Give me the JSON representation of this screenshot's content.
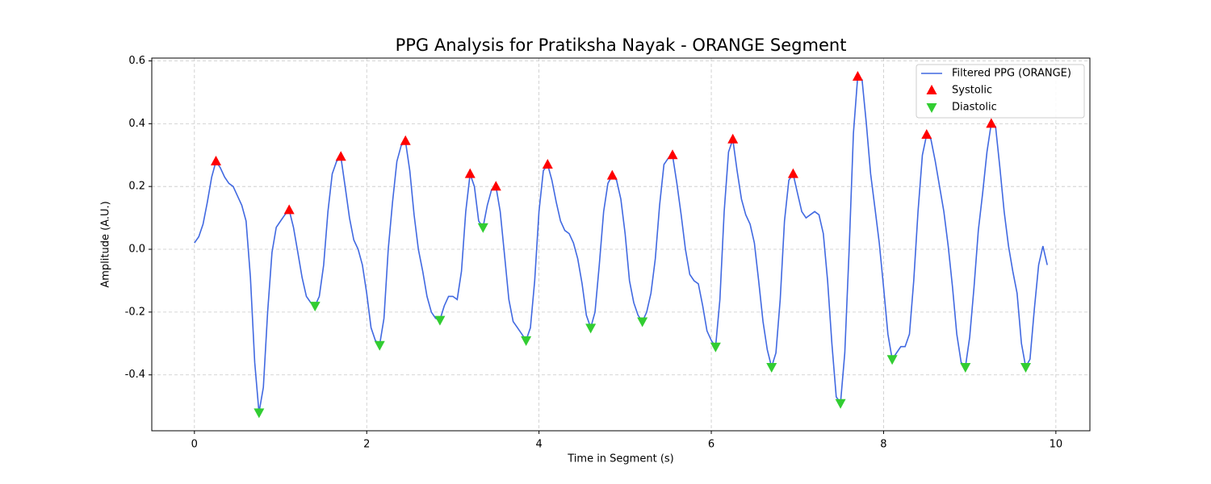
{
  "chart_data": {
    "type": "line",
    "title": "PPG Analysis for Pratiksha Nayak - ORANGE Segment",
    "xlabel": "Time in Segment (s)",
    "ylabel": "Amplitude (A.U.)",
    "xlim": [
      -0.495,
      10.395
    ],
    "ylim": [
      -0.578,
      0.609
    ],
    "xticks": [
      0,
      2,
      4,
      6,
      8,
      10
    ],
    "yticks": [
      -0.4,
      -0.2,
      {
        "value": 0,
        "label": "0.0"
      },
      0.2,
      0.4,
      0.6
    ],
    "grid": true,
    "legend": "upper right",
    "series": [
      {
        "name": "Filtered PPG (ORANGE)",
        "type": "line",
        "color": "#4169e1",
        "x": [
          0,
          0.05,
          0.1,
          0.15,
          0.2,
          0.25,
          0.3,
          0.35,
          0.4,
          0.45,
          0.5,
          0.55,
          0.6,
          0.65,
          0.7,
          0.75,
          0.8,
          0.85,
          0.9,
          0.95,
          1,
          1.05,
          1.1,
          1.15,
          1.2,
          1.25,
          1.3,
          1.35,
          1.4,
          1.45,
          1.5,
          1.55,
          1.6,
          1.65,
          1.7,
          1.75,
          1.8,
          1.85,
          1.9,
          1.95,
          2,
          2.05,
          2.1,
          2.15,
          2.2,
          2.25,
          2.3,
          2.35,
          2.4,
          2.45,
          2.5,
          2.55,
          2.6,
          2.65,
          2.7,
          2.75,
          2.8,
          2.85,
          2.9,
          2.95,
          3,
          3.05,
          3.1,
          3.15,
          3.2,
          3.25,
          3.3,
          3.35,
          3.4,
          3.45,
          3.5,
          3.55,
          3.6,
          3.65,
          3.7,
          3.75,
          3.8,
          3.85,
          3.9,
          3.95,
          4,
          4.05,
          4.1,
          4.15,
          4.2,
          4.25,
          4.3,
          4.35,
          4.4,
          4.45,
          4.5,
          4.55,
          4.6,
          4.65,
          4.7,
          4.75,
          4.8,
          4.85,
          4.9,
          4.95,
          5,
          5.05,
          5.1,
          5.15,
          5.2,
          5.25,
          5.3,
          5.35,
          5.4,
          5.45,
          5.5,
          5.55,
          5.6,
          5.65,
          5.7,
          5.75,
          5.8,
          5.85,
          5.9,
          5.95,
          6,
          6.05,
          6.1,
          6.15,
          6.2,
          6.25,
          6.3,
          6.35,
          6.4,
          6.45,
          6.5,
          6.55,
          6.6,
          6.65,
          6.7,
          6.75,
          6.8,
          6.85,
          6.9,
          6.95,
          7,
          7.05,
          7.1,
          7.15,
          7.2,
          7.25,
          7.3,
          7.35,
          7.4,
          7.45,
          7.5,
          7.55,
          7.6,
          7.65,
          7.7,
          7.75,
          7.8,
          7.85,
          7.9,
          7.95,
          8,
          8.05,
          8.1,
          8.15,
          8.2,
          8.25,
          8.3,
          8.35,
          8.4,
          8.45,
          8.5,
          8.55,
          8.6,
          8.65,
          8.7,
          8.75,
          8.8,
          8.85,
          8.9,
          8.95,
          9,
          9.05,
          9.1,
          9.15,
          9.2,
          9.25,
          9.3,
          9.35,
          9.4,
          9.45,
          9.5,
          9.55,
          9.6,
          9.65,
          9.7,
          9.75,
          9.8,
          9.85,
          9.9
        ],
        "values": [
          0.02,
          0.04,
          0.08,
          0.15,
          0.23,
          0.28,
          0.26,
          0.23,
          0.21,
          0.2,
          0.17,
          0.14,
          0.09,
          -0.09,
          -0.36,
          -0.52,
          -0.44,
          -0.2,
          -0.01,
          0.07,
          0.09,
          0.11,
          0.125,
          0.07,
          -0.01,
          -0.09,
          -0.15,
          -0.17,
          -0.18,
          -0.15,
          -0.05,
          0.12,
          0.24,
          0.28,
          0.295,
          0.2,
          0.1,
          0.03,
          0.0,
          -0.05,
          -0.14,
          -0.25,
          -0.29,
          -0.305,
          -0.22,
          0.0,
          0.15,
          0.28,
          0.33,
          0.345,
          0.25,
          0.11,
          0.0,
          -0.07,
          -0.15,
          -0.2,
          -0.22,
          -0.225,
          -0.18,
          -0.15,
          -0.15,
          -0.16,
          -0.07,
          0.12,
          0.24,
          0.2,
          0.09,
          0.07,
          0.14,
          0.19,
          0.2,
          0.12,
          -0.02,
          -0.16,
          -0.23,
          -0.25,
          -0.27,
          -0.29,
          -0.25,
          -0.1,
          0.12,
          0.25,
          0.27,
          0.22,
          0.15,
          0.09,
          0.06,
          0.05,
          0.02,
          -0.03,
          -0.11,
          -0.21,
          -0.25,
          -0.2,
          -0.05,
          0.12,
          0.21,
          0.235,
          0.22,
          0.16,
          0.05,
          -0.1,
          -0.17,
          -0.21,
          -0.23,
          -0.2,
          -0.14,
          -0.03,
          0.14,
          0.27,
          0.29,
          0.3,
          0.21,
          0.11,
          0.0,
          -0.08,
          -0.1,
          -0.11,
          -0.18,
          -0.26,
          -0.29,
          -0.31,
          -0.16,
          0.12,
          0.31,
          0.35,
          0.25,
          0.16,
          0.11,
          0.08,
          0.02,
          -0.1,
          -0.23,
          -0.32,
          -0.375,
          -0.33,
          -0.16,
          0.09,
          0.22,
          0.24,
          0.18,
          0.12,
          0.1,
          0.11,
          0.12,
          0.11,
          0.05,
          -0.1,
          -0.3,
          -0.47,
          -0.49,
          -0.33,
          0.0,
          0.37,
          0.55,
          0.54,
          0.4,
          0.24,
          0.13,
          0.02,
          -0.12,
          -0.27,
          -0.35,
          -0.33,
          -0.31,
          -0.31,
          -0.27,
          -0.1,
          0.12,
          0.3,
          0.365,
          0.35,
          0.28,
          0.2,
          0.12,
          0.01,
          -0.12,
          -0.27,
          -0.36,
          -0.375,
          -0.28,
          -0.12,
          0.06,
          0.18,
          0.31,
          0.4,
          0.39,
          0.26,
          0.12,
          0.01,
          -0.07,
          -0.14,
          -0.3,
          -0.375,
          -0.35,
          -0.19,
          -0.05,
          0.01,
          -0.05
        ]
      },
      {
        "name": "Systolic",
        "type": "scatter",
        "marker": "triangle-up",
        "color": "#ff0000",
        "x": [
          0.25,
          1.1,
          1.7,
          2.45,
          3.2,
          3.5,
          4.1,
          4.85,
          5.55,
          6.25,
          6.95,
          7.7,
          8.5,
          9.25
        ],
        "values": [
          0.28,
          0.125,
          0.295,
          0.345,
          0.24,
          0.2,
          0.27,
          0.235,
          0.3,
          0.35,
          0.24,
          0.55,
          0.365,
          0.4
        ]
      },
      {
        "name": "Diastolic",
        "type": "scatter",
        "marker": "triangle-down",
        "color": "#32cd32",
        "x": [
          0.75,
          1.4,
          2.15,
          2.85,
          3.35,
          3.85,
          4.6,
          5.2,
          6.05,
          6.7,
          7.5,
          8.1,
          8.95,
          9.65
        ],
        "values": [
          -0.52,
          -0.18,
          -0.305,
          -0.225,
          0.07,
          -0.29,
          -0.25,
          -0.23,
          -0.31,
          -0.375,
          -0.49,
          -0.35,
          -0.375,
          -0.375
        ]
      }
    ]
  }
}
